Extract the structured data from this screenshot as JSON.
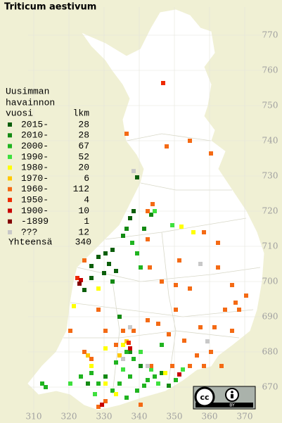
{
  "title": "Triticum aestivum",
  "legend": {
    "heading": [
      "Uusimman",
      "havainnon",
      "vuosi"
    ],
    "count_heading": "lkm",
    "rows": [
      {
        "label": "2015-",
        "count": 28,
        "color": "#0b5e0b"
      },
      {
        "label": "2010-",
        "count": 28,
        "color": "#138a13"
      },
      {
        "label": "2000-",
        "count": 67,
        "color": "#20b420"
      },
      {
        "label": "1990-",
        "count": 52,
        "color": "#3ee03e"
      },
      {
        "label": "1980-",
        "count": 20,
        "color": "#ffff00"
      },
      {
        "label": "1970-",
        "count": 6,
        "color": "#ffc800"
      },
      {
        "label": "1960-",
        "count": 112,
        "color": "#f46a14"
      },
      {
        "label": "1950-",
        "count": 4,
        "color": "#ee2a00"
      },
      {
        "label": "1900-",
        "count": 10,
        "color": "#c80000"
      },
      {
        "label": "-1899",
        "count": 1,
        "color": "#820000"
      },
      {
        "label": "???",
        "count": 12,
        "color": "#c8c8c8"
      }
    ],
    "total": {
      "label": "Yhteensä",
      "count": 340
    }
  },
  "x_labels": [
    310,
    320,
    330,
    340,
    350,
    360,
    370
  ],
  "y_labels": [
    670,
    680,
    690,
    700,
    710,
    720,
    730,
    740,
    750,
    760,
    770
  ],
  "license": {
    "cc": "cc",
    "by": "BY"
  }
}
